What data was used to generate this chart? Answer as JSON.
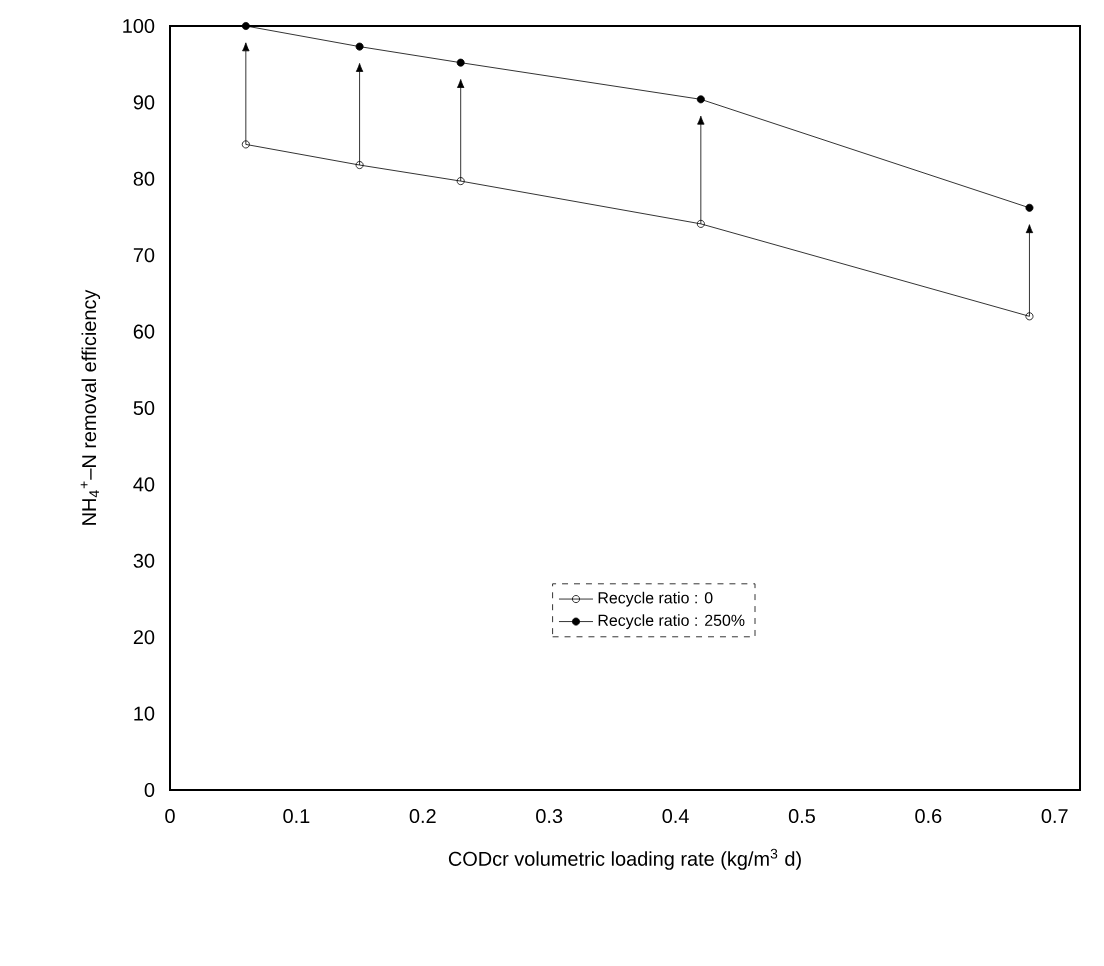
{
  "chart_data": {
    "type": "line",
    "xlabel": "CODcr volumetric loading rate (kg/m$^{3}$ d)",
    "ylabel": "NH$_{4}$$^{+}$–N removal efficiency",
    "series": [
      {
        "name": "Recycle ratio : 0",
        "color": "#000000",
        "marker": "circle_open",
        "x": [
          0.06,
          0.15,
          0.23,
          0.42,
          0.68
        ],
        "values": [
          84.5,
          81.8,
          79.7,
          74.1,
          62.0
        ]
      },
      {
        "name": "Recycle ratio : 250%",
        "color": "#000000",
        "marker": "circle",
        "x": [
          0.06,
          0.15,
          0.23,
          0.42,
          0.68
        ],
        "values": [
          100,
          97.3,
          95.2,
          90.4,
          76.2
        ]
      }
    ],
    "xlim": [
      0,
      0.72
    ],
    "xticks": [
      0,
      0.1,
      0.2,
      0.3,
      0.4,
      0.5,
      0.6,
      0.7
    ],
    "ylim": [
      0,
      100
    ],
    "yticks": [
      0,
      10,
      20,
      30,
      40,
      50,
      60,
      70,
      80,
      90,
      100
    ],
    "grid": false,
    "legend": "right",
    "line_style": "solid"
  }
}
